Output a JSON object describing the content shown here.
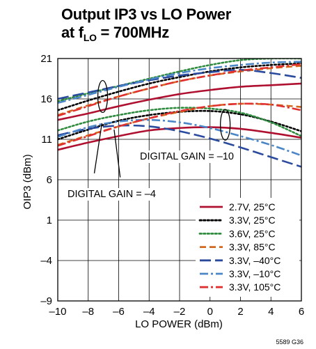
{
  "title": {
    "line1": "Output IP3 vs LO Power",
    "line2_prefix": "at f",
    "line2_sub": "LO",
    "line2_suffix": " = 700MHz"
  },
  "figure_id": "5589 G36",
  "chart_data": {
    "type": "line",
    "xlabel": "LO POWER (dBm)",
    "ylabel": "OIP3 (dBm)",
    "xlim": [
      -10,
      6
    ],
    "ylim": [
      -9,
      21
    ],
    "x_ticks": [
      -10,
      -8,
      -6,
      -4,
      -2,
      0,
      2,
      4,
      6
    ],
    "x_tick_labels": [
      "–10",
      "–8",
      "–6",
      "–4",
      "–2",
      "0",
      "2",
      "4",
      "6"
    ],
    "y_ticks": [
      -9,
      -4,
      1,
      6,
      11,
      16,
      21
    ],
    "y_tick_labels": [
      "–9",
      "–4",
      "1",
      "6",
      "11",
      "16",
      "21"
    ],
    "grid": true,
    "legend_position": "bottom-right",
    "annotations": [
      {
        "text": "DIGITAL GAIN = –10"
      },
      {
        "text": "DIGITAL GAIN = –4"
      }
    ],
    "x": [
      -10,
      -8,
      -6,
      -4,
      -2,
      0,
      2,
      4,
      6
    ],
    "series": [
      {
        "name": "2.7V, 25°C",
        "color": "#b01030",
        "dash": "solid",
        "group": "gain -4",
        "values": [
          13.4,
          14.2,
          15.1,
          15.9,
          16.6,
          17.1,
          17.5,
          17.7,
          17.9
        ]
      },
      {
        "name": "3.3V, 25°C",
        "color": "#000000",
        "dash": "dotted",
        "group": "gain -4",
        "values": [
          14.6,
          15.8,
          16.9,
          17.9,
          18.7,
          19.4,
          19.9,
          20.2,
          20.4
        ]
      },
      {
        "name": "3.6V, 25°C",
        "color": "#2e8b3e",
        "dash": "dotted",
        "group": "gain -4",
        "values": [
          15.7,
          16.7,
          17.6,
          18.5,
          19.4,
          20.2,
          20.8,
          21.0,
          21.0
        ]
      },
      {
        "name": "3.3V, 85°C",
        "color": "#d2691e",
        "dash": "dashed",
        "group": "gain -4",
        "values": [
          14.0,
          15.2,
          16.3,
          17.3,
          18.2,
          18.9,
          19.4,
          19.8,
          20.1
        ]
      },
      {
        "name": "3.3V, –40°C",
        "color": "#2a4a9e",
        "dash": "longdash",
        "group": "gain -4",
        "values": [
          16.0,
          16.8,
          17.6,
          18.3,
          18.9,
          19.3,
          19.6,
          19.2,
          18.6
        ]
      },
      {
        "name": "3.3V, –10°C",
        "color": "#4a86c8",
        "dash": "dashdot",
        "group": "gain -4",
        "values": [
          15.5,
          16.5,
          17.5,
          18.4,
          19.2,
          19.8,
          20.2,
          20.5,
          20.6
        ]
      },
      {
        "name": "3.3V, 105°C",
        "color": "#e03030",
        "dash": "dashdot",
        "group": "gain -4",
        "values": [
          13.9,
          15.1,
          16.3,
          17.3,
          18.2,
          18.9,
          19.5,
          19.9,
          20.3
        ]
      },
      {
        "name": "2.7V, 25°C",
        "color": "#b01030",
        "dash": "solid",
        "group": "gain -10",
        "values": [
          9.7,
          10.6,
          11.4,
          12.1,
          12.4,
          12.5,
          12.3,
          11.8,
          11.2
        ]
      },
      {
        "name": "3.3V, 25°C",
        "color": "#000000",
        "dash": "dotted",
        "group": "gain -10",
        "values": [
          11.0,
          12.2,
          13.3,
          14.0,
          14.4,
          14.5,
          14.1,
          13.2,
          12.0
        ]
      },
      {
        "name": "3.6V, 25°C",
        "color": "#2e8b3e",
        "dash": "dotted",
        "group": "gain -10",
        "values": [
          12.1,
          13.2,
          14.0,
          14.6,
          14.9,
          14.8,
          14.3,
          13.1,
          11.4
        ]
      },
      {
        "name": "3.3V, 85°C",
        "color": "#d2691e",
        "dash": "dashed",
        "group": "gain -10",
        "values": [
          10.3,
          11.5,
          12.6,
          13.6,
          14.4,
          15.1,
          15.4,
          15.3,
          15.0
        ]
      },
      {
        "name": "3.3V, –40°C",
        "color": "#2a4a9e",
        "dash": "longdash",
        "group": "gain -10",
        "values": [
          11.5,
          12.3,
          12.7,
          12.6,
          12.0,
          11.1,
          10.0,
          8.8,
          7.6
        ]
      },
      {
        "name": "3.3V, –10°C",
        "color": "#4a86c8",
        "dash": "dashdot",
        "group": "gain -10",
        "values": [
          11.3,
          12.5,
          13.2,
          13.4,
          13.1,
          12.4,
          11.4,
          10.3,
          9.0
        ]
      },
      {
        "name": "3.3V, 105°C",
        "color": "#e03030",
        "dash": "dashdot",
        "group": "gain -10",
        "values": [
          10.2,
          11.4,
          12.6,
          13.6,
          14.5,
          15.1,
          15.4,
          15.3,
          14.6
        ]
      }
    ],
    "legend": [
      {
        "name": "2.7V, 25°C",
        "color": "#b01030",
        "dash": "solid"
      },
      {
        "name": "3.3V, 25°C",
        "color": "#000000",
        "dash": "dotted"
      },
      {
        "name": "3.6V, 25°C",
        "color": "#2e8b3e",
        "dash": "dotted"
      },
      {
        "name": "3.3V, 85°C",
        "color": "#d2691e",
        "dash": "dashed"
      },
      {
        "name": "3.3V, –40°C",
        "color": "#2a4a9e",
        "dash": "longdash"
      },
      {
        "name": "3.3V, –10°C",
        "color": "#4a86c8",
        "dash": "dashdot"
      },
      {
        "name": "3.3V, 105°C",
        "color": "#e03030",
        "dash": "dashdot"
      }
    ]
  }
}
